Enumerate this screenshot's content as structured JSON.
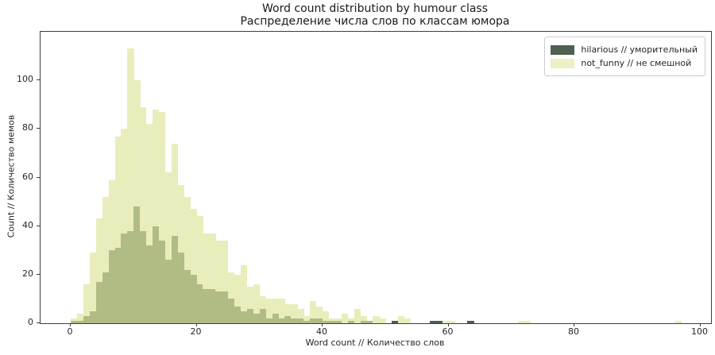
{
  "title": {
    "line1": "Word count distribution by humour class",
    "line2": "Распределение числа слов по классам юмора"
  },
  "axes": {
    "xlabel": "Word count // Количество слов",
    "ylabel": "Count // Количество мемов",
    "x_ticks": [
      0,
      20,
      40,
      60,
      80,
      100
    ],
    "y_ticks": [
      0,
      20,
      40,
      60,
      80,
      100
    ]
  },
  "legend": {
    "items": [
      {
        "label": "hilarious // уморительный",
        "color": "#4e6050"
      },
      {
        "label": "not_funny // не смешной",
        "color": "#edf0c3"
      }
    ]
  },
  "colors": {
    "hilarious_solid": "#4e6050",
    "not_funny_alone": "#e9edbb",
    "overlap": "#b1bc85",
    "spine": "#3d3d3d"
  },
  "chart_data": {
    "type": "bar",
    "subtype": "overlaid_histogram",
    "title": "Word count distribution by humour class / Распределение числа слов по классам юмора",
    "xlabel": "Word count // Количество слов",
    "ylabel": "Count // Количество мемов",
    "grid": false,
    "legend_position": "upper right",
    "bin_width": 1,
    "bin_start": 0,
    "xlim": [
      -4.8,
      101.7
    ],
    "ylim": [
      0,
      120
    ],
    "series": [
      {
        "name": "hilarious // уморительный",
        "color": "#4e6050",
        "values": [
          1,
          1,
          3,
          5,
          17,
          21,
          30,
          31,
          37,
          38,
          48,
          38,
          32,
          40,
          34,
          26,
          36,
          29,
          22,
          20,
          16,
          14,
          14,
          13,
          13,
          10,
          7,
          5,
          6,
          4,
          6,
          2,
          4,
          2,
          3,
          2,
          2,
          1,
          2,
          2,
          1,
          1,
          1,
          0,
          1,
          0,
          1,
          1,
          0,
          0,
          0,
          1,
          0,
          0,
          0,
          0,
          0,
          1,
          1,
          0,
          0,
          0,
          0,
          1,
          0,
          0,
          0,
          0,
          0,
          0,
          0,
          0,
          0,
          0,
          0,
          0,
          0,
          0,
          0,
          0,
          0,
          0,
          0,
          0,
          0,
          0,
          0,
          0,
          0,
          0,
          0,
          0,
          0,
          0,
          0,
          0,
          0
        ]
      },
      {
        "name": "not_funny // не смешной",
        "color": "#e9edbb",
        "overlap_color": "#b1bc85",
        "values": [
          2,
          4,
          16,
          29,
          43,
          52,
          59,
          77,
          80,
          113,
          100,
          89,
          82,
          88,
          87,
          62,
          74,
          57,
          52,
          47,
          44,
          37,
          37,
          34,
          34,
          21,
          20,
          24,
          15,
          16,
          11,
          10,
          10,
          10,
          8,
          8,
          6,
          3,
          9,
          7,
          5,
          2,
          2,
          4,
          2,
          6,
          3,
          1,
          3,
          2,
          0,
          0,
          3,
          2,
          0,
          0,
          0,
          0,
          0,
          1,
          1,
          0,
          0,
          0,
          0,
          0,
          0,
          0,
          0,
          0,
          0,
          1,
          1,
          0,
          0,
          0,
          0,
          0,
          0,
          0,
          0,
          0,
          0,
          0,
          0,
          0,
          0,
          0,
          0,
          0,
          0,
          0,
          0,
          0,
          0,
          0,
          1
        ]
      }
    ]
  }
}
